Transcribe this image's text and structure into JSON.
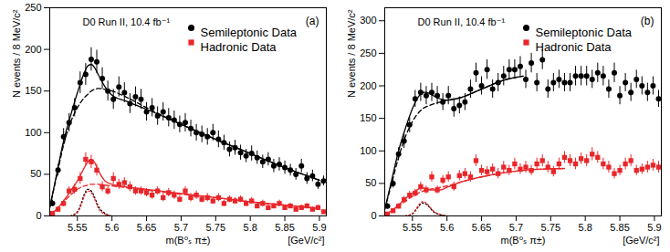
{
  "chart_data": [
    {
      "type": "scatter",
      "title": "(a)",
      "annotation": "D0 Run II, 10.4 fb⁻¹",
      "x_label": "m(B⁰ₛ π±)",
      "x_units": "[GeV/c²]",
      "y_label": "N events / 8 MeV/c²",
      "xlim": [
        5.51,
        5.91
      ],
      "xticks": [
        5.55,
        5.6,
        5.65,
        5.7,
        5.75,
        5.8,
        5.85,
        5.9
      ],
      "ylim": [
        0,
        250
      ],
      "yticks": [
        0,
        50,
        100,
        150,
        200,
        250
      ],
      "legend": "top-right",
      "x": [
        5.514,
        5.522,
        5.53,
        5.538,
        5.546,
        5.554,
        5.562,
        5.57,
        5.578,
        5.586,
        5.594,
        5.602,
        5.61,
        5.618,
        5.626,
        5.634,
        5.642,
        5.65,
        5.658,
        5.666,
        5.674,
        5.682,
        5.69,
        5.698,
        5.706,
        5.714,
        5.722,
        5.73,
        5.738,
        5.746,
        5.754,
        5.762,
        5.77,
        5.778,
        5.786,
        5.794,
        5.802,
        5.81,
        5.818,
        5.826,
        5.834,
        5.842,
        5.85,
        5.858,
        5.866,
        5.874,
        5.882,
        5.89,
        5.898,
        5.906
      ],
      "series": [
        {
          "name": "Semileptonic Data",
          "color": "#000000",
          "marker": "circle",
          "values": [
            15,
            55,
            95,
            112,
            130,
            160,
            170,
            188,
            185,
            165,
            150,
            140,
            155,
            148,
            135,
            143,
            140,
            125,
            130,
            120,
            125,
            118,
            115,
            110,
            112,
            105,
            100,
            98,
            95,
            100,
            92,
            88,
            80,
            82,
            76,
            72,
            75,
            70,
            65,
            68,
            60,
            62,
            58,
            55,
            50,
            60,
            45,
            48,
            38,
            42
          ],
          "errors": [
            4,
            7,
            10,
            11,
            11,
            13,
            13,
            14,
            14,
            13,
            12,
            12,
            12,
            12,
            12,
            12,
            12,
            11,
            11,
            11,
            11,
            11,
            11,
            10,
            11,
            10,
            10,
            10,
            10,
            10,
            10,
            9,
            9,
            9,
            9,
            8,
            9,
            8,
            8,
            8,
            8,
            8,
            8,
            7,
            7,
            8,
            7,
            7,
            6,
            6
          ]
        },
        {
          "name": "Hadronic Data",
          "color": "#e8262a",
          "marker": "square",
          "values": [
            3,
            8,
            15,
            30,
            32,
            45,
            68,
            65,
            55,
            35,
            30,
            45,
            38,
            40,
            35,
            30,
            30,
            28,
            25,
            30,
            22,
            28,
            25,
            20,
            30,
            22,
            25,
            20,
            22,
            18,
            22,
            15,
            20,
            18,
            20,
            15,
            18,
            12,
            15,
            10,
            12,
            15,
            10,
            12,
            8,
            10,
            12,
            8,
            10,
            5
          ],
          "errors": [
            2,
            3,
            4,
            5,
            6,
            7,
            8,
            8,
            7,
            6,
            5,
            7,
            6,
            6,
            6,
            5,
            5,
            5,
            5,
            5,
            5,
            5,
            5,
            4,
            5,
            5,
            5,
            4,
            5,
            4,
            5,
            4,
            4,
            4,
            4,
            4,
            4,
            3,
            4,
            3,
            3,
            4,
            3,
            3,
            3,
            3,
            3,
            3,
            3,
            2
          ]
        },
        {
          "type": "line",
          "color": "#000000",
          "line_style": "solid",
          "x": [
            5.51,
            5.52,
            5.53,
            5.54,
            5.55,
            5.56,
            5.565,
            5.57,
            5.575,
            5.58,
            5.59,
            5.6,
            5.62,
            5.65,
            5.7,
            5.75,
            5.8,
            5.85,
            5.9
          ],
          "values": [
            10,
            50,
            90,
            120,
            148,
            172,
            180,
            182,
            178,
            170,
            155,
            145,
            138,
            128,
            110,
            92,
            75,
            58,
            43
          ]
        },
        {
          "type": "line",
          "color": "#000000",
          "line_style": "dashed",
          "x": [
            5.51,
            5.52,
            5.53,
            5.54,
            5.55,
            5.56,
            5.565,
            5.57,
            5.575,
            5.58,
            5.59,
            5.6,
            5.62,
            5.65,
            5.7,
            5.75,
            5.8,
            5.85,
            5.9
          ],
          "values": [
            10,
            48,
            85,
            112,
            130,
            142,
            146,
            150,
            152,
            153,
            152,
            150,
            143,
            130,
            110,
            92,
            75,
            58,
            43
          ]
        },
        {
          "type": "line",
          "color": "#e8262a",
          "line_style": "solid",
          "x": [
            5.51,
            5.52,
            5.53,
            5.54,
            5.55,
            5.56,
            5.565,
            5.57,
            5.575,
            5.58,
            5.59,
            5.6,
            5.62,
            5.65,
            5.7,
            5.75,
            5.8,
            5.85,
            5.9
          ],
          "values": [
            2,
            8,
            18,
            30,
            42,
            58,
            65,
            68,
            64,
            55,
            42,
            38,
            35,
            32,
            27,
            22,
            17,
            13,
            9
          ]
        },
        {
          "type": "line",
          "color": "#e8262a",
          "line_style": "dashed",
          "x": [
            5.51,
            5.52,
            5.53,
            5.54,
            5.55,
            5.56,
            5.565,
            5.57,
            5.575,
            5.58,
            5.59,
            5.6,
            5.62,
            5.65,
            5.7,
            5.75,
            5.8,
            5.85,
            5.9
          ],
          "values": [
            2,
            8,
            17,
            25,
            32,
            36,
            37,
            38,
            38,
            38,
            37,
            36,
            34,
            31,
            26,
            22,
            17,
            13,
            9
          ]
        },
        {
          "type": "line",
          "color": "#000000",
          "line_style": "dotted",
          "x": [
            5.54,
            5.55,
            5.555,
            5.56,
            5.565,
            5.57,
            5.575,
            5.58,
            5.59,
            5.6
          ],
          "values": [
            0,
            5,
            14,
            26,
            32,
            30,
            22,
            12,
            3,
            0
          ]
        },
        {
          "type": "line",
          "color": "#e8262a",
          "line_style": "dotted",
          "x": [
            5.54,
            5.55,
            5.555,
            5.56,
            5.565,
            5.57,
            5.575,
            5.58,
            5.59,
            5.6
          ],
          "values": [
            0,
            4,
            12,
            24,
            30,
            28,
            20,
            10,
            2,
            0
          ]
        }
      ]
    },
    {
      "type": "scatter",
      "title": "(b)",
      "annotation": "D0 Run II, 10.4 fb⁻¹",
      "x_label": "m(B⁰ₛ π±)",
      "x_units": "[GeV/c²]",
      "y_label": "N events / 8 MeV/c²",
      "xlim": [
        5.51,
        5.91
      ],
      "xticks": [
        5.55,
        5.6,
        5.65,
        5.7,
        5.75,
        5.8,
        5.85,
        5.9
      ],
      "ylim": [
        0,
        320
      ],
      "yticks": [
        0,
        50,
        100,
        150,
        200,
        250,
        300
      ],
      "legend": "top-right",
      "x": [
        5.514,
        5.522,
        5.53,
        5.538,
        5.546,
        5.554,
        5.562,
        5.57,
        5.578,
        5.586,
        5.594,
        5.602,
        5.61,
        5.618,
        5.626,
        5.634,
        5.642,
        5.65,
        5.658,
        5.666,
        5.674,
        5.682,
        5.69,
        5.698,
        5.706,
        5.714,
        5.722,
        5.73,
        5.738,
        5.746,
        5.754,
        5.762,
        5.77,
        5.778,
        5.786,
        5.794,
        5.802,
        5.81,
        5.818,
        5.826,
        5.834,
        5.842,
        5.85,
        5.858,
        5.866,
        5.874,
        5.882,
        5.89,
        5.898,
        5.906
      ],
      "series": [
        {
          "name": "Semileptonic Data",
          "color": "#000000",
          "marker": "circle",
          "values": [
            15,
            50,
            95,
            115,
            140,
            180,
            190,
            185,
            190,
            185,
            175,
            185,
            165,
            170,
            175,
            195,
            220,
            200,
            225,
            195,
            205,
            215,
            225,
            225,
            230,
            210,
            235,
            205,
            240,
            195,
            205,
            210,
            205,
            205,
            215,
            215,
            215,
            210,
            220,
            215,
            195,
            220,
            185,
            205,
            190,
            210,
            200,
            190,
            200,
            180
          ],
          "errors": [
            4,
            7,
            10,
            11,
            12,
            13,
            14,
            14,
            14,
            14,
            13,
            14,
            13,
            13,
            13,
            14,
            15,
            14,
            15,
            14,
            14,
            15,
            15,
            15,
            15,
            14,
            15,
            14,
            15,
            14,
            14,
            14,
            14,
            14,
            15,
            15,
            15,
            14,
            15,
            15,
            14,
            15,
            14,
            14,
            14,
            14,
            14,
            14,
            14,
            13
          ]
        },
        {
          "name": "Hadronic Data",
          "color": "#e8262a",
          "marker": "square",
          "values": [
            3,
            8,
            15,
            25,
            32,
            35,
            45,
            40,
            60,
            40,
            55,
            60,
            45,
            62,
            65,
            60,
            85,
            70,
            68,
            72,
            65,
            75,
            70,
            80,
            72,
            75,
            70,
            80,
            85,
            75,
            68,
            80,
            90,
            85,
            80,
            88,
            85,
            95,
            90,
            80,
            75,
            65,
            70,
            80,
            85,
            70,
            72,
            75,
            78,
            75
          ],
          "errors": [
            2,
            3,
            4,
            5,
            6,
            6,
            7,
            6,
            8,
            6,
            7,
            8,
            7,
            8,
            8,
            8,
            9,
            8,
            8,
            8,
            8,
            9,
            8,
            9,
            8,
            9,
            8,
            9,
            9,
            9,
            8,
            9,
            9,
            9,
            9,
            9,
            9,
            10,
            9,
            9,
            9,
            8,
            8,
            9,
            9,
            8,
            8,
            9,
            9,
            9
          ]
        },
        {
          "type": "line",
          "color": "#000000",
          "line_style": "solid",
          "x": [
            5.51,
            5.52,
            5.53,
            5.54,
            5.55,
            5.56,
            5.565,
            5.57,
            5.575,
            5.58,
            5.59,
            5.6,
            5.62,
            5.65,
            5.68,
            5.71
          ],
          "values": [
            10,
            55,
            100,
            135,
            165,
            185,
            190,
            190,
            188,
            185,
            180,
            178,
            182,
            195,
            208,
            215
          ]
        },
        {
          "type": "line",
          "color": "#000000",
          "line_style": "dashed",
          "x": [
            5.51,
            5.52,
            5.53,
            5.54,
            5.55,
            5.56,
            5.565,
            5.57,
            5.575,
            5.58,
            5.59,
            5.6,
            5.62,
            5.65,
            5.68,
            5.71
          ],
          "values": [
            10,
            50,
            90,
            122,
            145,
            160,
            165,
            168,
            170,
            172,
            175,
            178,
            182,
            195,
            208,
            215
          ]
        },
        {
          "type": "line",
          "color": "#e8262a",
          "line_style": "solid",
          "x": [
            5.51,
            5.52,
            5.53,
            5.54,
            5.55,
            5.56,
            5.565,
            5.57,
            5.575,
            5.58,
            5.59,
            5.6,
            5.62,
            5.65,
            5.68,
            5.71,
            5.74,
            5.77
          ],
          "values": [
            2,
            8,
            17,
            27,
            35,
            42,
            43,
            42,
            40,
            40,
            40,
            44,
            52,
            60,
            66,
            70,
            72,
            73
          ]
        },
        {
          "type": "line",
          "color": "#e8262a",
          "line_style": "dashed",
          "x": [
            5.51,
            5.52,
            5.53,
            5.54,
            5.55,
            5.56,
            5.565,
            5.57,
            5.575,
            5.58,
            5.59,
            5.6,
            5.62,
            5.65,
            5.68,
            5.71,
            5.74,
            5.77
          ],
          "values": [
            2,
            8,
            15,
            23,
            30,
            36,
            38,
            40,
            41,
            42,
            44,
            46,
            52,
            60,
            66,
            70,
            72,
            73
          ]
        },
        {
          "type": "line",
          "color": "#000000",
          "line_style": "dotted",
          "x": [
            5.54,
            5.55,
            5.555,
            5.56,
            5.565,
            5.57,
            5.575,
            5.58,
            5.59,
            5.6
          ],
          "values": [
            0,
            3,
            9,
            16,
            20,
            18,
            13,
            7,
            2,
            0
          ]
        },
        {
          "type": "line",
          "color": "#e8262a",
          "line_style": "dotted",
          "x": [
            5.54,
            5.55,
            5.555,
            5.56,
            5.565,
            5.57,
            5.575,
            5.58,
            5.59,
            5.6
          ],
          "values": [
            0,
            4,
            10,
            18,
            22,
            20,
            14,
            8,
            2,
            0
          ]
        }
      ]
    }
  ]
}
